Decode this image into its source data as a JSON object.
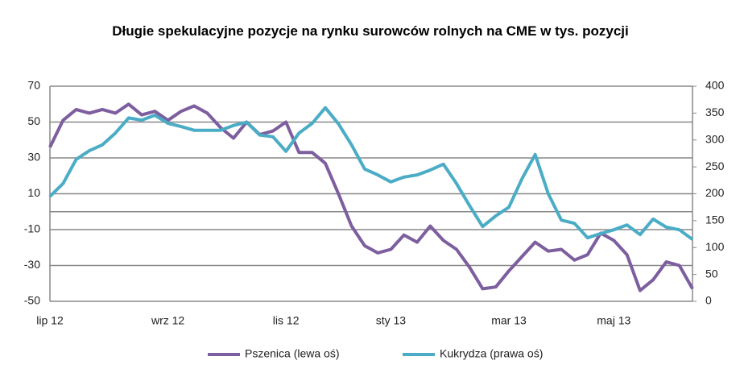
{
  "chart_data": {
    "type": "line",
    "title": "Długie spekulacyjne pozycje na rynku surowców rolnych na CME w tys. pozycji",
    "categories": [
      "lip 12",
      null,
      null,
      null,
      null,
      null,
      null,
      null,
      null,
      "wrz 12",
      null,
      null,
      null,
      null,
      null,
      null,
      null,
      null,
      "lis 12",
      null,
      null,
      null,
      null,
      null,
      null,
      null,
      "sty 13",
      null,
      null,
      null,
      null,
      null,
      null,
      null,
      null,
      "mar 13",
      null,
      null,
      null,
      null,
      null,
      null,
      null,
      "maj 13",
      null,
      null,
      null,
      null,
      null,
      null
    ],
    "series": [
      {
        "name": "Pszenica (lewa oś)",
        "color": "#7d5e9e",
        "axis": "y",
        "values": [
          36,
          51,
          57,
          55,
          57,
          55,
          60,
          54,
          56,
          51,
          56,
          59,
          55,
          47,
          41,
          50,
          43,
          45,
          50,
          33,
          33,
          27,
          10,
          -8,
          -19,
          -23,
          -21,
          -13,
          -17,
          -8,
          -16,
          -21,
          -31,
          -43,
          -42,
          -33,
          -25,
          -17,
          -22,
          -21,
          -27,
          -24,
          -12,
          -16,
          -24,
          -44,
          -38,
          -28,
          -30,
          -43
        ]
      },
      {
        "name": "Kukrydza (prawa oś)",
        "color": "#4bacc6",
        "axis": "y2",
        "values": [
          195,
          219,
          264,
          280,
          291,
          313,
          341,
          337,
          346,
          331,
          325,
          318,
          318,
          318,
          327,
          333,
          309,
          306,
          279,
          313,
          331,
          360,
          330,
          291,
          246,
          235,
          222,
          231,
          235,
          244,
          255,
          219,
          178,
          139,
          159,
          175,
          228,
          273,
          200,
          151,
          145,
          118,
          126,
          133,
          142,
          124,
          153,
          138,
          133,
          115
        ]
      }
    ],
    "ylim": [
      -50,
      70
    ],
    "yticks": [
      -50,
      -30,
      -10,
      10,
      30,
      50,
      70
    ],
    "y2lim": [
      0,
      400
    ],
    "y2ticks": [
      0,
      50,
      100,
      150,
      200,
      250,
      300,
      350,
      400
    ],
    "grid": true,
    "legend": "bottom"
  }
}
